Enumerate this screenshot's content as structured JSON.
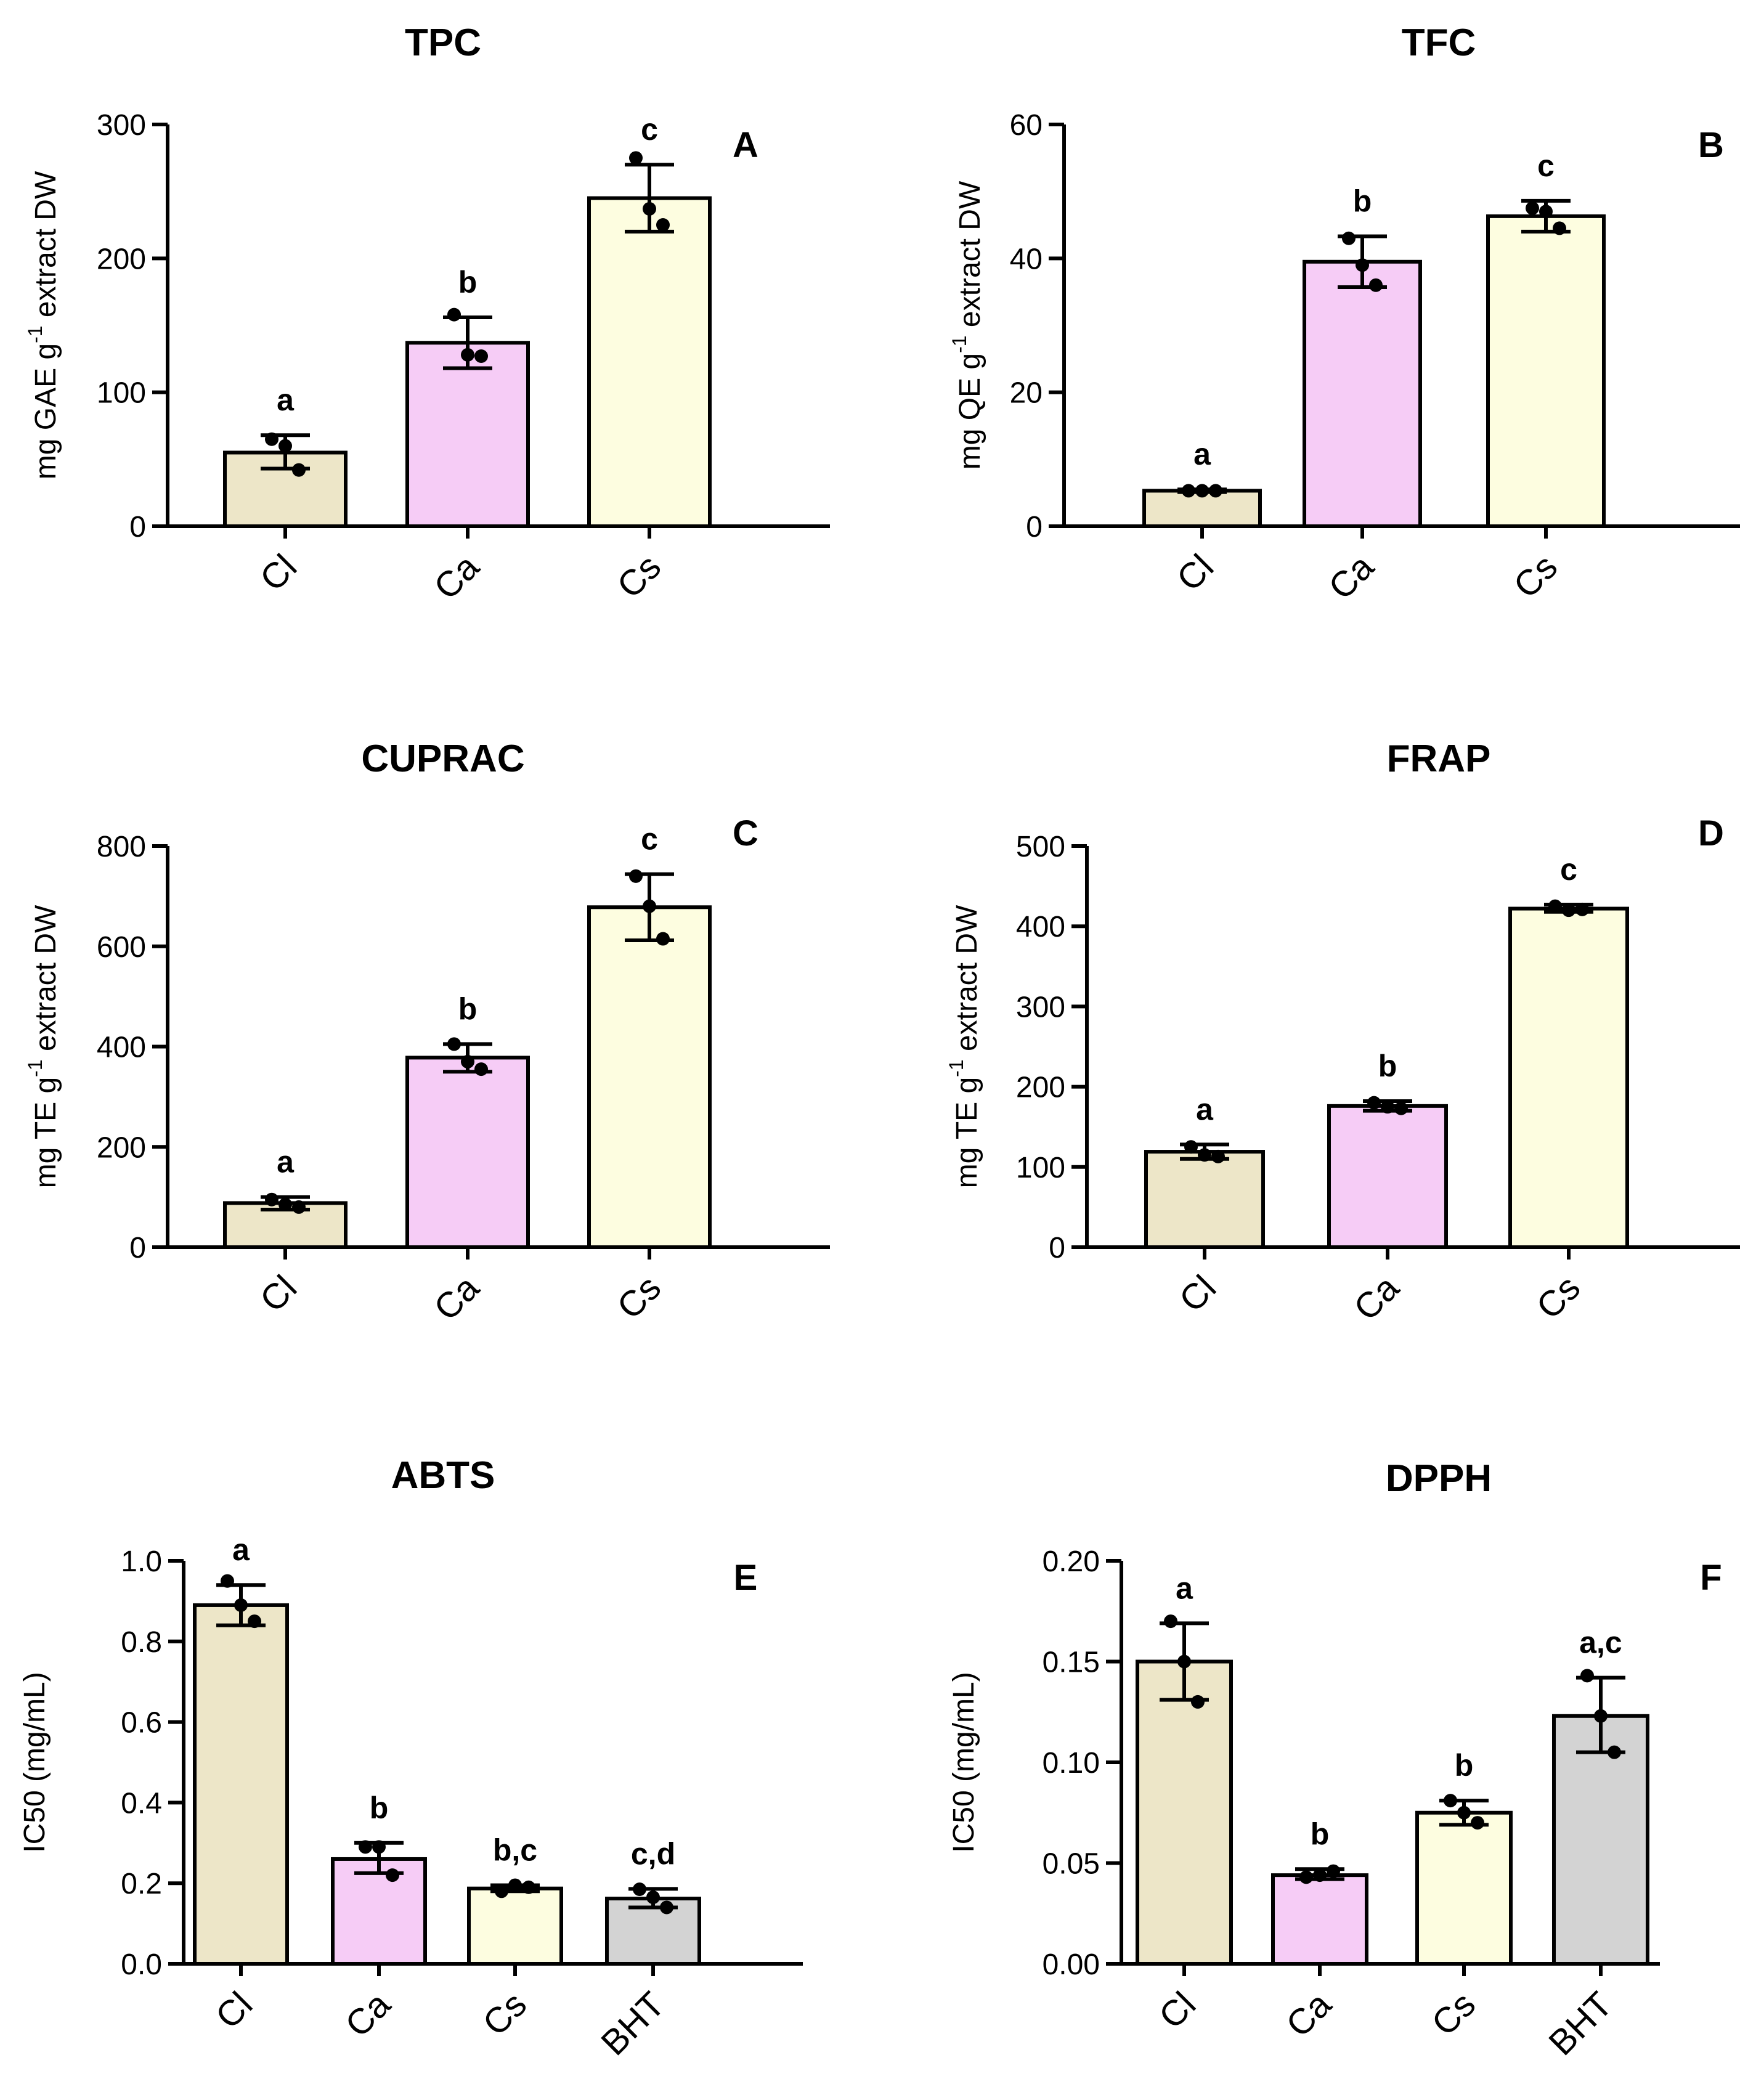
{
  "chart_data": [
    {
      "type": "bar",
      "panel": "A",
      "title": "TPC",
      "ylabel": {
        "prefix": "mg GAE  g",
        "sup": "-1",
        "suffix": " extract DW"
      },
      "ylim": [
        0,
        300
      ],
      "yticks": [
        0,
        100,
        200,
        300
      ],
      "decimals": 0,
      "categories": [
        "Cl",
        "Ca",
        "Cs"
      ],
      "values": [
        55,
        137,
        245
      ],
      "errors": [
        [
          43,
          68
        ],
        [
          118,
          156
        ],
        [
          220,
          270
        ]
      ],
      "points": [
        [
          65,
          60,
          42
        ],
        [
          158,
          128,
          127
        ],
        [
          275,
          237,
          225
        ]
      ],
      "letters": [
        "a",
        "b",
        "c"
      ]
    },
    {
      "type": "bar",
      "panel": "B",
      "title": "TFC",
      "ylabel": {
        "prefix": "mg QE g",
        "sup": "-1",
        "suffix": " extract DW"
      },
      "ylim": [
        0,
        60
      ],
      "yticks": [
        0,
        20,
        40,
        60
      ],
      "decimals": 0,
      "categories": [
        "Cl",
        "Ca",
        "Cs"
      ],
      "values": [
        5.3,
        39.5,
        46.3
      ],
      "errors": [
        [
          5.1,
          5.5
        ],
        [
          35.7,
          43.3
        ],
        [
          44.0,
          48.6
        ]
      ],
      "points": [
        [
          5.3,
          5.3,
          5.3
        ],
        [
          43,
          39,
          36
        ],
        [
          47.5,
          47,
          44.5
        ]
      ],
      "letters": [
        "a",
        "b",
        "c"
      ]
    },
    {
      "type": "bar",
      "panel": "C",
      "title": "CUPRAC",
      "ylabel": {
        "prefix": "mg TE g",
        "sup": "-1",
        "suffix": " extract DW"
      },
      "ylim": [
        0,
        800
      ],
      "yticks": [
        0,
        200,
        400,
        600,
        800
      ],
      "decimals": 0,
      "categories": [
        "Cl",
        "Ca",
        "Cs"
      ],
      "values": [
        88,
        378,
        678
      ],
      "errors": [
        [
          75,
          100
        ],
        [
          350,
          405
        ],
        [
          612,
          744
        ]
      ],
      "points": [
        [
          95,
          85,
          80
        ],
        [
          405,
          370,
          355
        ],
        [
          740,
          680,
          615
        ]
      ],
      "letters": [
        "a",
        "b",
        "c"
      ]
    },
    {
      "type": "bar",
      "panel": "D",
      "title": "FRAP",
      "ylabel": {
        "prefix": "mg TE g",
        "sup": "-1",
        "suffix": " extract DW"
      },
      "ylim": [
        0,
        500
      ],
      "yticks": [
        0,
        100,
        200,
        300,
        400,
        500
      ],
      "decimals": 0,
      "categories": [
        "Cl",
        "Ca",
        "Cs"
      ],
      "values": [
        119,
        176,
        422
      ],
      "errors": [
        [
          110,
          128
        ],
        [
          170,
          182
        ],
        [
          418,
          427
        ]
      ],
      "points": [
        [
          125,
          115,
          113
        ],
        [
          180,
          175,
          173
        ],
        [
          425,
          420,
          421
        ]
      ],
      "letters": [
        "a",
        "b",
        "c"
      ]
    },
    {
      "type": "bar",
      "panel": "E",
      "title": "ABTS",
      "ylabel": {
        "prefix": "IC50 (mg/mL)",
        "sup": "",
        "suffix": ""
      },
      "ylim": [
        0,
        1.0
      ],
      "yticks": [
        0,
        0.2,
        0.4,
        0.6,
        0.8,
        1.0
      ],
      "decimals": 1,
      "categories": [
        "Cl",
        "Ca",
        "Cs",
        "BHT"
      ],
      "values": [
        0.89,
        0.26,
        0.187,
        0.162
      ],
      "errors": [
        [
          0.84,
          0.94
        ],
        [
          0.225,
          0.3
        ],
        [
          0.18,
          0.195
        ],
        [
          0.14,
          0.186
        ]
      ],
      "points": [
        [
          0.95,
          0.89,
          0.85
        ],
        [
          0.29,
          0.29,
          0.22
        ],
        [
          0.18,
          0.195,
          0.19
        ],
        [
          0.185,
          0.165,
          0.14
        ]
      ],
      "letters": [
        "a",
        "b",
        "b,c",
        "c,d"
      ]
    },
    {
      "type": "bar",
      "panel": "F",
      "title": "DPPH",
      "ylabel": {
        "prefix": "IC50 (mg/mL)",
        "sup": "",
        "suffix": ""
      },
      "ylim": [
        0,
        0.2
      ],
      "yticks": [
        0,
        0.05,
        0.1,
        0.15,
        0.2
      ],
      "decimals": 2,
      "categories": [
        "Cl",
        "Ca",
        "Cs",
        "BHT"
      ],
      "values": [
        0.15,
        0.044,
        0.075,
        0.123
      ],
      "errors": [
        [
          0.131,
          0.169
        ],
        [
          0.042,
          0.047
        ],
        [
          0.069,
          0.081
        ],
        [
          0.105,
          0.142
        ]
      ],
      "points": [
        [
          0.17,
          0.15,
          0.13
        ],
        [
          0.043,
          0.044,
          0.046
        ],
        [
          0.081,
          0.075,
          0.07
        ],
        [
          0.143,
          0.123,
          0.105
        ]
      ],
      "letters": [
        "a",
        "b",
        "b",
        "a,c"
      ]
    }
  ],
  "colors": {
    "Cl": "#ede6c8",
    "Ca": "#f6ccf6",
    "Cs": "#fdfde0",
    "BHT": "#d3d3d3"
  }
}
